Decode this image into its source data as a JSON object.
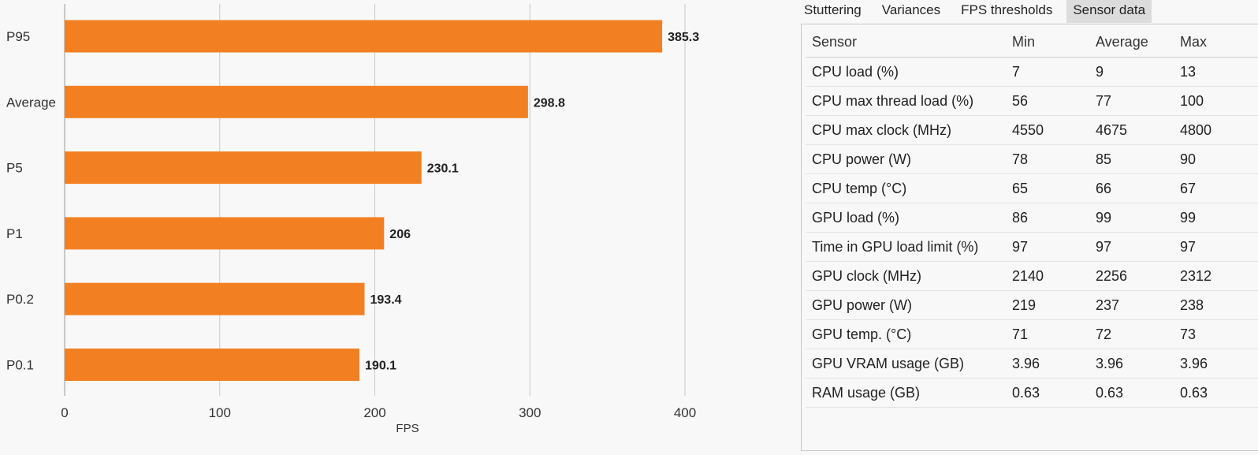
{
  "chart_data": {
    "type": "bar",
    "orientation": "horizontal",
    "categories": [
      "P95",
      "Average",
      "P5",
      "P1",
      "P0.2",
      "P0.1"
    ],
    "values": [
      385.3,
      298.8,
      230.1,
      206,
      193.4,
      190.1
    ],
    "data_labels": [
      "385.3",
      "298.8",
      "230.1",
      "206",
      "193.4",
      "190.1"
    ],
    "xticks": [
      0,
      100,
      200,
      300,
      400
    ],
    "xlim": [
      0,
      400
    ],
    "xlabel": "FPS",
    "ylabel": "",
    "title": "",
    "grid": true,
    "bar_color": "#f28023"
  },
  "tabs": [
    {
      "label": "Stuttering",
      "active": false
    },
    {
      "label": "Variances",
      "active": false
    },
    {
      "label": "FPS thresholds",
      "active": false
    },
    {
      "label": "Sensor data",
      "active": true
    }
  ],
  "sensor_table": {
    "headers": [
      "Sensor",
      "Min",
      "Average",
      "Max"
    ],
    "rows": [
      [
        "CPU load (%)",
        "7",
        "9",
        "13"
      ],
      [
        "CPU max thread load (%)",
        "56",
        "77",
        "100"
      ],
      [
        "CPU max clock (MHz)",
        "4550",
        "4675",
        "4800"
      ],
      [
        "CPU power (W)",
        "78",
        "85",
        "90"
      ],
      [
        "CPU temp (°C)",
        "65",
        "66",
        "67"
      ],
      [
        "GPU load (%)",
        "86",
        "99",
        "99"
      ],
      [
        "Time in GPU load limit (%)",
        "97",
        "97",
        "97"
      ],
      [
        "GPU clock (MHz)",
        "2140",
        "2256",
        "2312"
      ],
      [
        "GPU power (W)",
        "219",
        "237",
        "238"
      ],
      [
        "GPU temp. (°C)",
        "71",
        "72",
        "73"
      ],
      [
        "GPU VRAM usage (GB)",
        "3.96",
        "3.96",
        "3.96"
      ],
      [
        "RAM usage (GB)",
        "0.63",
        "0.63",
        "0.63"
      ]
    ]
  },
  "colors": {
    "accent": "#f28023",
    "tab_active_bg": "#dcdcdc",
    "grid": "#c8c8c8"
  }
}
